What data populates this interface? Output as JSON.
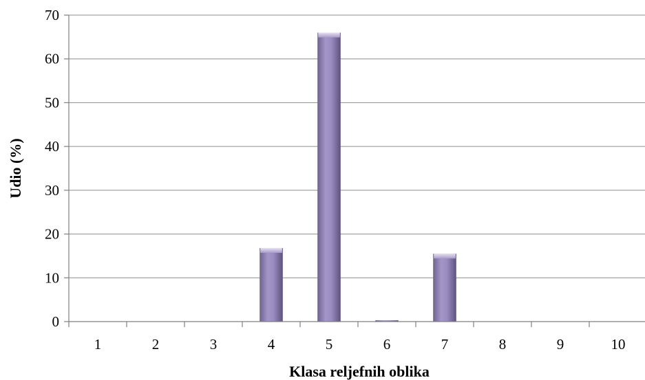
{
  "chart_data": {
    "type": "bar",
    "title": "",
    "xlabel": "Klasa reljefnih oblika",
    "ylabel": "Udio (%)",
    "categories": [
      "1",
      "2",
      "3",
      "4",
      "5",
      "6",
      "7",
      "8",
      "9",
      "10"
    ],
    "values": [
      0,
      0,
      0,
      16.8,
      66,
      0.3,
      15.5,
      0,
      0,
      0
    ],
    "ylim": [
      0,
      70
    ],
    "yticks": [
      0,
      10,
      20,
      30,
      40,
      50,
      60,
      70
    ],
    "grid": true,
    "legend": "none",
    "bar_color": "#9a8cc0"
  }
}
